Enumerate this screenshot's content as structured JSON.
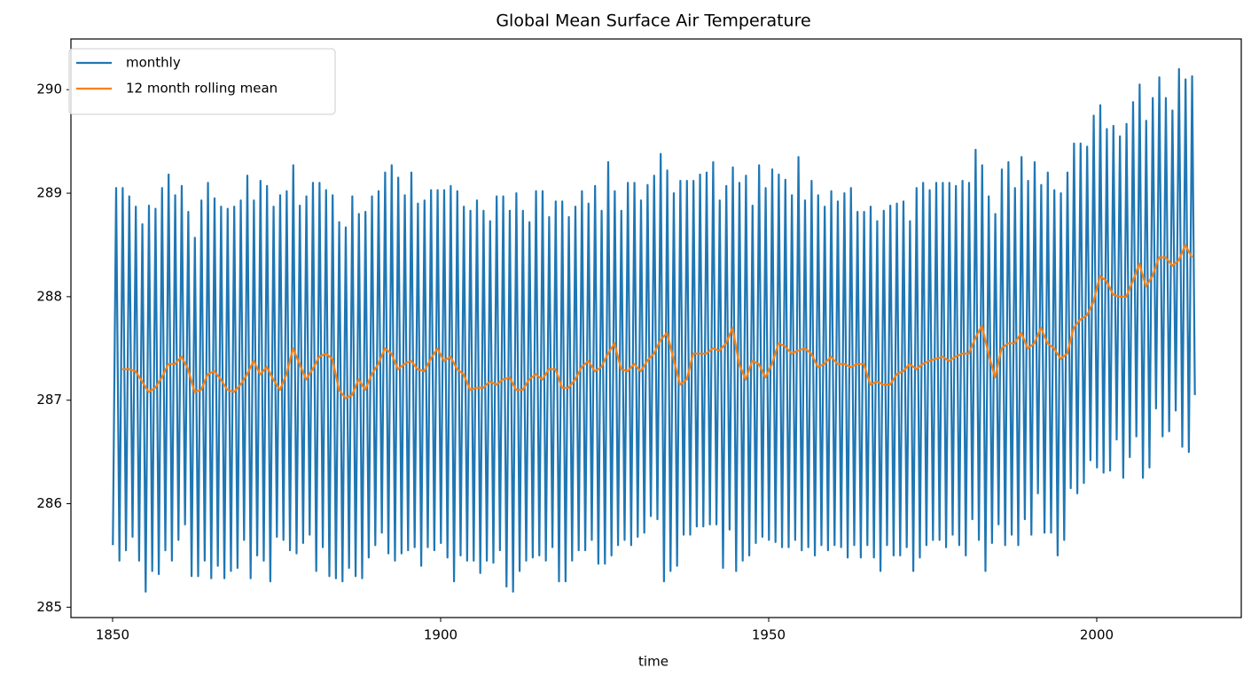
{
  "chart_data": {
    "type": "line",
    "title": "Global Mean Surface Air Temperature",
    "xlabel": "time",
    "xlim": [
      1843.65,
      2022.03
    ],
    "ylim": [
      284.9,
      290.49
    ],
    "xticks": [
      1850,
      1900,
      1950,
      2000
    ],
    "yticks": [
      285,
      286,
      287,
      288,
      289,
      290
    ],
    "grid": false,
    "legend": "upper left",
    "series": [
      {
        "name": "monthly",
        "color": "#1f77b4",
        "x": [
          1850.04,
          1850.54,
          1851.04,
          1851.54,
          1852.04,
          1852.54,
          1853.04,
          1853.54,
          1854.04,
          1854.54,
          1855.04,
          1855.54,
          1856.04,
          1856.54,
          1857.04,
          1857.54,
          1858.04,
          1858.54,
          1859.04,
          1859.54,
          1860.04,
          1860.54,
          1861.04,
          1861.54,
          1862.04,
          1862.54,
          1863.04,
          1863.54,
          1864.04,
          1864.54,
          1865.04,
          1865.54,
          1866.04,
          1866.54,
          1867.04,
          1867.54,
          1868.04,
          1868.54,
          1869.04,
          1869.54,
          1870.04,
          1870.54,
          1871.04,
          1871.54,
          1872.04,
          1872.54,
          1873.04,
          1873.54,
          1874.04,
          1874.54,
          1875.04,
          1875.54,
          1876.04,
          1876.54,
          1877.04,
          1877.54,
          1878.04,
          1878.54,
          1879.04,
          1879.54,
          1880.04,
          1880.54,
          1881.04,
          1881.54,
          1882.04,
          1882.54,
          1883.04,
          1883.54,
          1884.04,
          1884.54,
          1885.04,
          1885.54,
          1886.04,
          1886.54,
          1887.04,
          1887.54,
          1888.04,
          1888.54,
          1889.04,
          1889.54,
          1890.04,
          1890.54,
          1891.04,
          1891.54,
          1892.04,
          1892.54,
          1893.04,
          1893.54,
          1894.04,
          1894.54,
          1895.04,
          1895.54,
          1896.04,
          1896.54,
          1897.04,
          1897.54,
          1898.04,
          1898.54,
          1899.04,
          1899.54,
          1900.04,
          1900.54,
          1901.04,
          1901.54,
          1902.04,
          1902.54,
          1903.04,
          1903.54,
          1904.04,
          1904.54,
          1905.04,
          1905.54,
          1906.04,
          1906.54,
          1907.04,
          1907.54,
          1908.04,
          1908.54,
          1909.04,
          1909.54,
          1910.04,
          1910.54,
          1911.04,
          1911.54,
          1912.04,
          1912.54,
          1913.04,
          1913.54,
          1914.04,
          1914.54,
          1915.04,
          1915.54,
          1916.04,
          1916.54,
          1917.04,
          1917.54,
          1918.04,
          1918.54,
          1919.04,
          1919.54,
          1920.04,
          1920.54,
          1921.04,
          1921.54,
          1922.04,
          1922.54,
          1923.04,
          1923.54,
          1924.04,
          1924.54,
          1925.04,
          1925.54,
          1926.04,
          1926.54,
          1927.04,
          1927.54,
          1928.04,
          1928.54,
          1929.04,
          1929.54,
          1930.04,
          1930.54,
          1931.04,
          1931.54,
          1932.04,
          1932.54,
          1933.04,
          1933.54,
          1934.04,
          1934.54,
          1935.04,
          1935.54,
          1936.04,
          1936.54,
          1937.04,
          1937.54,
          1938.04,
          1938.54,
          1939.04,
          1939.54,
          1940.04,
          1940.54,
          1941.04,
          1941.54,
          1942.04,
          1942.54,
          1943.04,
          1943.54,
          1944.04,
          1944.54,
          1945.04,
          1945.54,
          1946.04,
          1946.54,
          1947.04,
          1947.54,
          1948.04,
          1948.54,
          1949.04,
          1949.54,
          1950.04,
          1950.54,
          1951.04,
          1951.54,
          1952.04,
          1952.54,
          1953.04,
          1953.54,
          1954.04,
          1954.54,
          1955.04,
          1955.54,
          1956.04,
          1956.54,
          1957.04,
          1957.54,
          1958.04,
          1958.54,
          1959.04,
          1959.54,
          1960.04,
          1960.54,
          1961.04,
          1961.54,
          1962.04,
          1962.54,
          1963.04,
          1963.54,
          1964.04,
          1964.54,
          1965.04,
          1965.54,
          1966.04,
          1966.54,
          1967.04,
          1967.54,
          1968.04,
          1968.54,
          1969.04,
          1969.54,
          1970.04,
          1970.54,
          1971.04,
          1971.54,
          1972.04,
          1972.54,
          1973.04,
          1973.54,
          1974.04,
          1974.54,
          1975.04,
          1975.54,
          1976.04,
          1976.54,
          1977.04,
          1977.54,
          1978.04,
          1978.54,
          1979.04,
          1979.54,
          1980.04,
          1980.54,
          1981.04,
          1981.54,
          1982.04,
          1982.54,
          1983.04,
          1983.54,
          1984.04,
          1984.54,
          1985.04,
          1985.54,
          1986.04,
          1986.54,
          1987.04,
          1987.54,
          1988.04,
          1988.54,
          1989.04,
          1989.54,
          1990.04,
          1990.54,
          1991.04,
          1991.54,
          1992.04,
          1992.54,
          1993.04,
          1993.54,
          1994.04,
          1994.54,
          1995.04,
          1995.54,
          1996.04,
          1996.54,
          1997.04,
          1997.54,
          1998.04,
          1998.54,
          1999.04,
          1999.54,
          2000.04,
          2000.54,
          2001.04,
          2001.54,
          2002.04,
          2002.54,
          2003.04,
          2003.54,
          2004.04,
          2004.54,
          2005.04,
          2005.54,
          2006.04,
          2006.54,
          2007.04,
          2007.54,
          2008.04,
          2008.54,
          2009.04,
          2009.54,
          2010.04,
          2010.54,
          2011.04,
          2011.54,
          2012.04,
          2012.54,
          2013.04,
          2013.54,
          2014.04,
          2014.54,
          2014.96
        ],
        "values": [
          285.6,
          289.05,
          285.45,
          289.05,
          285.55,
          288.97,
          285.68,
          288.87,
          285.45,
          288.7,
          285.15,
          288.88,
          285.35,
          288.85,
          285.32,
          289.05,
          285.55,
          289.18,
          285.45,
          288.98,
          285.65,
          289.07,
          285.8,
          288.82,
          285.3,
          288.57,
          285.3,
          288.93,
          285.45,
          289.1,
          285.28,
          288.95,
          285.4,
          288.87,
          285.28,
          288.85,
          285.35,
          288.87,
          285.38,
          288.93,
          285.65,
          289.17,
          285.28,
          288.93,
          285.5,
          289.12,
          285.45,
          289.07,
          285.25,
          288.87,
          285.68,
          288.98,
          285.65,
          289.02,
          285.55,
          289.27,
          285.52,
          288.88,
          285.62,
          288.97,
          285.7,
          289.1,
          285.35,
          289.1,
          285.58,
          289.03,
          285.3,
          288.98,
          285.28,
          288.72,
          285.25,
          288.67,
          285.38,
          288.97,
          285.3,
          288.8,
          285.28,
          288.82,
          285.48,
          288.97,
          285.6,
          289.02,
          285.72,
          289.2,
          285.52,
          289.27,
          285.45,
          289.15,
          285.52,
          288.98,
          285.55,
          289.2,
          285.58,
          288.9,
          285.4,
          288.93,
          285.58,
          289.03,
          285.55,
          289.03,
          285.62,
          289.03,
          285.48,
          289.07,
          285.25,
          289.02,
          285.5,
          288.87,
          285.45,
          288.83,
          285.45,
          288.93,
          285.33,
          288.83,
          285.45,
          288.73,
          285.43,
          288.97,
          285.55,
          288.97,
          285.2,
          288.83,
          285.15,
          289,
          285.35,
          288.83,
          285.45,
          288.72,
          285.48,
          289.02,
          285.5,
          289.02,
          285.45,
          288.77,
          285.58,
          288.92,
          285.25,
          288.92,
          285.25,
          288.77,
          285.45,
          288.87,
          285.55,
          289.02,
          285.55,
          288.9,
          285.65,
          289.07,
          285.42,
          288.83,
          285.42,
          289.3,
          285.5,
          289.02,
          285.6,
          288.83,
          285.65,
          289.1,
          285.6,
          289.1,
          285.68,
          288.93,
          285.72,
          289.08,
          285.88,
          289.17,
          285.85,
          289.38,
          285.25,
          289.22,
          285.35,
          289,
          285.4,
          289.12,
          285.7,
          289.12,
          285.7,
          289.12,
          285.78,
          289.18,
          285.78,
          289.2,
          285.8,
          289.3,
          285.8,
          288.93,
          285.38,
          289.07,
          285.75,
          289.25,
          285.35,
          289.1,
          285.45,
          289.17,
          285.5,
          288.88,
          285.62,
          289.27,
          285.68,
          289.05,
          285.65,
          289.23,
          285.63,
          289.18,
          285.58,
          289.13,
          285.58,
          288.98,
          285.65,
          289.35,
          285.55,
          288.93,
          285.58,
          289.12,
          285.5,
          288.98,
          285.6,
          288.87,
          285.55,
          289.02,
          285.6,
          288.92,
          285.58,
          289,
          285.48,
          289.05,
          285.6,
          288.82,
          285.48,
          288.82,
          285.6,
          288.87,
          285.48,
          288.73,
          285.35,
          288.83,
          285.6,
          288.88,
          285.5,
          288.9,
          285.5,
          288.92,
          285.58,
          288.73,
          285.35,
          289.05,
          285.48,
          289.1,
          285.6,
          289.03,
          285.65,
          289.1,
          285.65,
          289.1,
          285.58,
          289.1,
          285.7,
          289.07,
          285.6,
          289.12,
          285.5,
          289.1,
          285.85,
          289.42,
          285.65,
          289.27,
          285.35,
          288.97,
          285.62,
          288.8,
          285.8,
          289.23,
          285.6,
          289.3,
          285.7,
          289.05,
          285.6,
          289.35,
          285.85,
          289.12,
          285.7,
          289.3,
          286.1,
          289.08,
          285.72,
          289.2,
          285.72,
          289.03,
          285.5,
          289,
          285.65,
          289.2,
          286.15,
          289.48,
          286.1,
          289.48,
          286.2,
          289.45,
          286.42,
          289.75,
          286.35,
          289.85,
          286.3,
          289.62,
          286.32,
          289.65,
          286.62,
          289.55,
          286.25,
          289.67,
          286.45,
          289.88,
          286.65,
          290.05,
          286.25,
          289.7,
          286.35,
          289.92,
          286.92,
          290.12,
          286.65,
          289.92,
          286.7,
          289.8,
          286.9,
          290.2,
          286.55,
          290.1,
          286.5,
          290.13,
          287.05
        ]
      },
      {
        "name": "12 month rolling mean",
        "color": "#ff7f0e",
        "x": [
          1851.5,
          1852.5,
          1853.5,
          1854.5,
          1855.5,
          1856.5,
          1857.5,
          1858.5,
          1859.5,
          1860.5,
          1861.5,
          1862.5,
          1863.5,
          1864.5,
          1865.5,
          1866.5,
          1867.5,
          1868.5,
          1869.5,
          1870.5,
          1871.5,
          1872.5,
          1873.5,
          1874.5,
          1875.5,
          1876.5,
          1877.5,
          1878.5,
          1879.5,
          1880.5,
          1881.5,
          1882.5,
          1883.5,
          1884.5,
          1885.5,
          1886.5,
          1887.5,
          1888.5,
          1889.5,
          1890.5,
          1891.5,
          1892.5,
          1893.5,
          1894.5,
          1895.5,
          1896.5,
          1897.5,
          1898.5,
          1899.5,
          1900.5,
          1901.5,
          1902.5,
          1903.5,
          1904.5,
          1905.5,
          1906.5,
          1907.5,
          1908.5,
          1909.5,
          1910.5,
          1911.5,
          1912.5,
          1913.5,
          1914.5,
          1915.5,
          1916.5,
          1917.5,
          1918.5,
          1919.5,
          1920.5,
          1921.5,
          1922.5,
          1923.5,
          1924.5,
          1925.5,
          1926.5,
          1927.5,
          1928.5,
          1929.5,
          1930.5,
          1931.5,
          1932.5,
          1933.5,
          1934.5,
          1935.5,
          1936.5,
          1937.5,
          1938.5,
          1939.5,
          1940.5,
          1941.5,
          1942.5,
          1943.5,
          1944.5,
          1945.5,
          1946.5,
          1947.5,
          1948.5,
          1949.5,
          1950.5,
          1951.5,
          1952.5,
          1953.5,
          1954.5,
          1955.5,
          1956.5,
          1957.5,
          1958.5,
          1959.5,
          1960.5,
          1961.5,
          1962.5,
          1963.5,
          1964.5,
          1965.5,
          1966.5,
          1967.5,
          1968.5,
          1969.5,
          1970.5,
          1971.5,
          1972.5,
          1973.5,
          1974.5,
          1975.5,
          1976.5,
          1977.5,
          1978.5,
          1979.5,
          1980.5,
          1981.5,
          1982.5,
          1983.5,
          1984.5,
          1985.5,
          1986.5,
          1987.5,
          1988.5,
          1989.5,
          1990.5,
          1991.5,
          1992.5,
          1993.5,
          1994.5,
          1995.5,
          1996.5,
          1997.5,
          1998.5,
          1999.5,
          2000.5,
          2001.5,
          2002.5,
          2003.5,
          2004.5,
          2005.5,
          2006.5,
          2007.5,
          2008.5,
          2009.5,
          2010.5,
          2011.5,
          2012.5,
          2013.5,
          2014.5
        ],
        "values": [
          287.3,
          287.3,
          287.28,
          287.18,
          287.08,
          287.12,
          287.22,
          287.35,
          287.35,
          287.42,
          287.3,
          287.08,
          287.1,
          287.25,
          287.28,
          287.2,
          287.1,
          287.08,
          287.15,
          287.25,
          287.38,
          287.25,
          287.32,
          287.2,
          287.1,
          287.25,
          287.5,
          287.35,
          287.2,
          287.3,
          287.42,
          287.45,
          287.4,
          287.1,
          287.02,
          287.05,
          287.2,
          287.1,
          287.25,
          287.35,
          287.5,
          287.45,
          287.3,
          287.35,
          287.38,
          287.3,
          287.28,
          287.4,
          287.5,
          287.38,
          287.42,
          287.3,
          287.25,
          287.1,
          287.12,
          287.12,
          287.18,
          287.15,
          287.2,
          287.22,
          287.1,
          287.1,
          287.2,
          287.25,
          287.2,
          287.3,
          287.3,
          287.12,
          287.12,
          287.2,
          287.32,
          287.38,
          287.28,
          287.32,
          287.45,
          287.55,
          287.3,
          287.28,
          287.35,
          287.28,
          287.38,
          287.45,
          287.58,
          287.65,
          287.4,
          287.15,
          287.2,
          287.45,
          287.45,
          287.45,
          287.5,
          287.48,
          287.55,
          287.7,
          287.35,
          287.2,
          287.38,
          287.35,
          287.22,
          287.35,
          287.55,
          287.52,
          287.45,
          287.48,
          287.5,
          287.45,
          287.32,
          287.35,
          287.42,
          287.35,
          287.35,
          287.32,
          287.35,
          287.35,
          287.15,
          287.18,
          287.15,
          287.15,
          287.25,
          287.28,
          287.35,
          287.3,
          287.35,
          287.38,
          287.4,
          287.42,
          287.38,
          287.42,
          287.45,
          287.45,
          287.6,
          287.72,
          287.45,
          287.22,
          287.5,
          287.55,
          287.55,
          287.65,
          287.5,
          287.55,
          287.7,
          287.55,
          287.5,
          287.4,
          287.45,
          287.7,
          287.78,
          287.82,
          287.95,
          288.2,
          288.15,
          288.02,
          288,
          288,
          288.15,
          288.32,
          288.1,
          288.2,
          288.38,
          288.38,
          288.3,
          288.35,
          288.5,
          288.38
        ]
      }
    ]
  }
}
